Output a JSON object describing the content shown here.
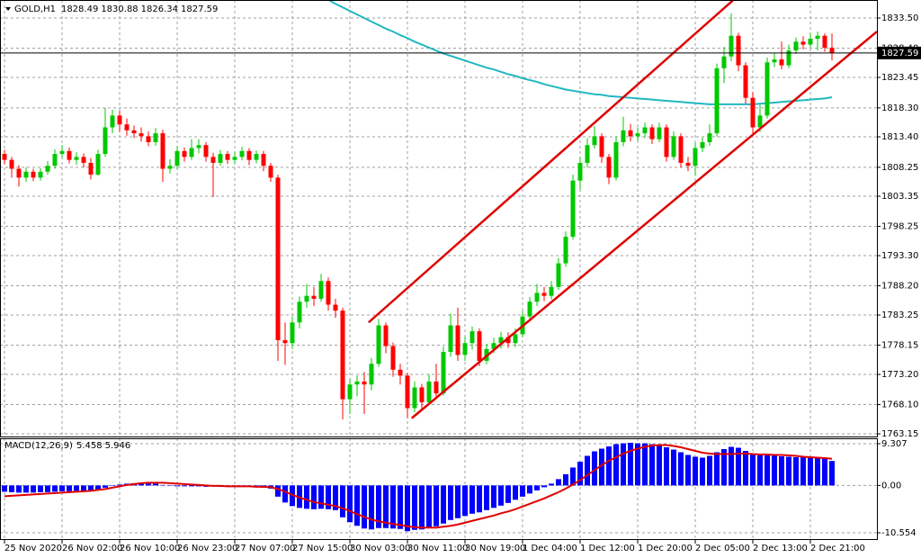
{
  "chart_data": [
    {
      "type": "candlestick",
      "title": "GOLD,H1",
      "categories": [
        "25 Nov 2020",
        null,
        null,
        null,
        null,
        null,
        null,
        null,
        "26 Nov 02:00",
        null,
        null,
        null,
        null,
        null,
        null,
        null,
        "26 Nov 10:00",
        null,
        null,
        null,
        null,
        null,
        null,
        null,
        "26 Nov 23:00",
        null,
        null,
        null,
        null,
        null,
        null,
        null,
        "27 Nov 07:00",
        null,
        null,
        null,
        null,
        null,
        null,
        null,
        "27 Nov 15:00",
        null,
        null,
        null,
        null,
        null,
        null,
        null,
        "30 Nov 03:00",
        null,
        null,
        null,
        null,
        null,
        null,
        null,
        "30 Nov 11:00",
        null,
        null,
        null,
        null,
        null,
        null,
        null,
        "30 Nov 19:00",
        null,
        null,
        null,
        null,
        null,
        null,
        null,
        "1 Dec 04:00",
        null,
        null,
        null,
        null,
        null,
        null,
        null,
        "1 Dec 12:00",
        null,
        null,
        null,
        null,
        null,
        null,
        null,
        "1 Dec 20:00",
        null,
        null,
        null,
        null,
        null,
        null,
        null,
        "2 Dec 05:00",
        null,
        null,
        null,
        null,
        null,
        null,
        null,
        "2 Dec 13:00",
        null,
        null,
        null,
        null,
        null,
        null,
        null,
        "2 Dec 21:00",
        null,
        null,
        null
      ],
      "open": [
        1810.5,
        1809.5,
        1808.0,
        1806.5,
        1807.5,
        1806.5,
        1807.5,
        1808.5,
        1810.5,
        1811.0,
        1809.5,
        1810.0,
        1809.0,
        1807.0,
        1810.5,
        1815.0,
        1817.0,
        1815.5,
        1814.5,
        1814.0,
        1813.5,
        1812.5,
        1814.0,
        1808.0,
        1808.5,
        1811.0,
        1810.0,
        1811.5,
        1812.0,
        1810.0,
        1809.0,
        1810.5,
        1809.5,
        1810.0,
        1811.0,
        1809.5,
        1810.5,
        1808.5,
        1806.5,
        1779.0,
        1778.5,
        1782.0,
        1785.5,
        1786.5,
        1786.0,
        1789.0,
        1785.0,
        1784.0,
        1769.0,
        1771.5,
        1772.0,
        1771.5,
        1775.0,
        1781.5,
        1778.0,
        1774.0,
        1773.0,
        1767.5,
        1771.0,
        1768.5,
        1772.0,
        1770.0,
        1777.0,
        1781.5,
        1776.5,
        1778.5,
        1780.5,
        1775.5,
        1777.5,
        1778.5,
        1779.5,
        1778.5,
        1780.0,
        1783.0,
        1785.5,
        1787.0,
        1786.5,
        1788.0,
        1792.0,
        1796.5,
        1806.0,
        1809.0,
        1812.0,
        1813.5,
        1810.0,
        1806.5,
        1812.5,
        1814.5,
        1813.5,
        1814.0,
        1815.0,
        1813.0,
        1815.0,
        1810.0,
        1813.5,
        1809.0,
        1808.5,
        1811.5,
        1812.5,
        1814.0,
        1825.0,
        1827.0,
        1830.5,
        1825.5,
        1820.0,
        1815.0,
        1817.0,
        1826.0,
        1826.5,
        1825.5,
        1828.0,
        1829.5,
        1829.0,
        1830.0,
        1830.5,
        1828.49
      ],
      "high": [
        1811.2,
        1810.0,
        1808.6,
        1808.2,
        1808.0,
        1808.1,
        1809.3,
        1811.3,
        1812.0,
        1811.6,
        1810.8,
        1810.6,
        1809.8,
        1811.2,
        1818.3,
        1818.0,
        1817.8,
        1816.5,
        1815.3,
        1815.0,
        1814.3,
        1814.9,
        1814.6,
        1809.6,
        1811.8,
        1811.6,
        1813.0,
        1813.0,
        1812.5,
        1810.7,
        1811.2,
        1811.0,
        1810.9,
        1811.7,
        1811.5,
        1811.1,
        1811.0,
        1809.0,
        1807.0,
        1782.0,
        1783.0,
        1786.4,
        1788.5,
        1788.0,
        1790.2,
        1789.6,
        1786.0,
        1784.5,
        1772.5,
        1773.0,
        1773.6,
        1776.0,
        1782.6,
        1782.0,
        1778.6,
        1775.0,
        1773.5,
        1772.0,
        1771.6,
        1773.2,
        1775.0,
        1777.9,
        1783.5,
        1784.5,
        1779.6,
        1781.3,
        1781.0,
        1778.4,
        1779.4,
        1780.4,
        1780.3,
        1781.0,
        1784.0,
        1786.3,
        1788.5,
        1788.0,
        1789.0,
        1792.9,
        1797.4,
        1807.0,
        1810.0,
        1813.2,
        1815.2,
        1814.0,
        1810.5,
        1813.5,
        1816.8,
        1815.6,
        1815.0,
        1815.8,
        1815.5,
        1815.8,
        1815.5,
        1814.3,
        1814.0,
        1810.0,
        1812.4,
        1813.3,
        1815.5,
        1825.8,
        1828.6,
        1834.3,
        1831.0,
        1826.0,
        1821.0,
        1818.8,
        1826.8,
        1827.5,
        1829.5,
        1829.0,
        1830.2,
        1830.4,
        1831.0,
        1831.2,
        1830.9,
        1830.88
      ],
      "low": [
        1808.8,
        1806.5,
        1805.0,
        1805.8,
        1805.9,
        1806.0,
        1807.0,
        1808.0,
        1809.8,
        1808.9,
        1808.7,
        1808.2,
        1806.2,
        1806.8,
        1810.0,
        1814.0,
        1814.2,
        1813.6,
        1813.2,
        1812.6,
        1811.8,
        1811.9,
        1805.8,
        1807.2,
        1807.9,
        1809.2,
        1809.5,
        1810.6,
        1809.2,
        1803.2,
        1808.5,
        1808.8,
        1808.9,
        1809.4,
        1808.6,
        1808.9,
        1807.6,
        1805.8,
        1775.5,
        1774.8,
        1777.5,
        1781.0,
        1784.5,
        1784.8,
        1785.5,
        1784.0,
        1782.8,
        1765.6,
        1766.5,
        1769.5,
        1766.5,
        1770.5,
        1774.5,
        1776.8,
        1772.8,
        1771.5,
        1765.8,
        1766.8,
        1767.3,
        1768.0,
        1769.0,
        1769.6,
        1776.2,
        1775.5,
        1775.5,
        1777.4,
        1774.6,
        1774.9,
        1776.8,
        1777.6,
        1777.7,
        1777.8,
        1779.5,
        1782.4,
        1784.8,
        1785.6,
        1785.9,
        1787.5,
        1791.4,
        1796.0,
        1804.5,
        1808.2,
        1811.4,
        1809.0,
        1805.4,
        1806.0,
        1811.8,
        1812.6,
        1812.8,
        1813.2,
        1812.2,
        1812.5,
        1809.2,
        1809.5,
        1808.2,
        1807.6,
        1806.8,
        1810.8,
        1811.9,
        1813.4,
        1822.5,
        1826.2,
        1824.5,
        1819.0,
        1814.0,
        1814.2,
        1816.5,
        1825.2,
        1824.8,
        1825.0,
        1827.4,
        1828.2,
        1828.5,
        1828.0,
        1827.8,
        1826.34
      ],
      "close": [
        1809.5,
        1808.0,
        1806.5,
        1807.5,
        1806.5,
        1807.5,
        1808.5,
        1810.5,
        1811.0,
        1809.5,
        1810.0,
        1809.0,
        1807.0,
        1810.5,
        1815.0,
        1817.0,
        1815.5,
        1814.5,
        1814.0,
        1813.5,
        1812.5,
        1814.0,
        1808.0,
        1808.5,
        1811.0,
        1810.0,
        1811.5,
        1812.0,
        1810.0,
        1809.0,
        1810.5,
        1809.5,
        1810.0,
        1811.0,
        1809.5,
        1810.5,
        1808.5,
        1806.5,
        1779.0,
        1778.5,
        1782.0,
        1785.5,
        1786.5,
        1786.0,
        1789.0,
        1785.0,
        1784.0,
        1769.0,
        1771.5,
        1772.0,
        1771.5,
        1775.0,
        1781.5,
        1778.0,
        1774.0,
        1773.0,
        1767.5,
        1771.0,
        1768.5,
        1772.0,
        1770.0,
        1777.0,
        1781.5,
        1776.5,
        1778.5,
        1780.5,
        1775.5,
        1777.5,
        1778.5,
        1779.5,
        1778.5,
        1780.0,
        1783.0,
        1785.5,
        1787.0,
        1786.5,
        1788.0,
        1792.0,
        1796.5,
        1806.0,
        1809.0,
        1812.0,
        1813.5,
        1810.0,
        1806.5,
        1812.5,
        1814.5,
        1813.5,
        1814.0,
        1815.0,
        1813.0,
        1815.0,
        1810.0,
        1813.5,
        1809.0,
        1808.5,
        1811.5,
        1812.5,
        1814.0,
        1825.0,
        1827.0,
        1830.5,
        1825.5,
        1820.0,
        1815.0,
        1817.0,
        1826.0,
        1826.5,
        1825.5,
        1828.0,
        1829.5,
        1829.0,
        1830.0,
        1830.5,
        1828.49,
        1827.59
      ],
      "up_color": "#00c800",
      "down_color": "#ff0000",
      "ylim": [
        1762.7,
        1836.55
      ],
      "yticks": [
        {
          "value": 1833.5,
          "label": "1833.50"
        },
        {
          "value": 1828.4,
          "label": "1828.40"
        },
        1823.45,
        {
          "value": 1818.3,
          "label": "1818.30"
        },
        {
          "value": 1813.4,
          "label": "1813.40"
        },
        1808.25,
        1803.35,
        1798.25,
        {
          "value": 1793.3,
          "label": "1793.30"
        },
        {
          "value": 1788.2,
          "label": "1788.20"
        },
        1783.25,
        1778.15,
        {
          "value": 1773.2,
          "label": "1773.20"
        },
        {
          "value": 1768.1,
          "label": "1768.10"
        },
        1763.15
      ],
      "grid": true,
      "ma": {
        "color": "#20b8c0",
        "values": [
          null,
          null,
          null,
          null,
          null,
          null,
          null,
          null,
          null,
          null,
          null,
          null,
          null,
          null,
          null,
          null,
          null,
          null,
          null,
          null,
          null,
          null,
          null,
          null,
          null,
          null,
          null,
          null,
          null,
          null,
          null,
          null,
          null,
          null,
          null,
          null,
          null,
          null,
          null,
          null,
          null,
          null,
          null,
          null,
          null,
          1836.6,
          1835.9,
          1835.3,
          1834.7,
          1834.1,
          1833.5,
          1832.9,
          1832.3,
          1831.7,
          1831.2,
          1830.6,
          1830.1,
          1829.5,
          1829.0,
          1828.5,
          1828.0,
          1827.5,
          1827.1,
          1826.7,
          1826.3,
          1825.9,
          1825.5,
          1825.1,
          1824.8,
          1824.4,
          1824.0,
          1823.7,
          1823.3,
          1823.0,
          1822.7,
          1822.3,
          1822.0,
          1821.7,
          1821.4,
          1821.2,
          1821.0,
          1820.8,
          1820.6,
          1820.5,
          1820.3,
          1820.2,
          1820.1,
          1820.0,
          1819.9,
          1819.8,
          1819.7,
          1819.6,
          1819.5,
          1819.4,
          1819.3,
          1819.2,
          1819.1,
          1819.0,
          1818.9,
          1818.9,
          1818.9,
          1818.9,
          1818.9,
          1818.9,
          1818.9,
          1819.0,
          1819.1,
          1819.2,
          1819.3,
          1819.4,
          1819.5,
          1819.6,
          1819.7,
          1819.8,
          1819.9,
          1820.1
        ]
      },
      "trendlines": [
        {
          "color": "#e00000",
          "x": [
            50.6,
            101.25
          ],
          "y": [
            1782.0,
            1836.5
          ]
        },
        {
          "color": "#e00000",
          "x": [
            56.6,
            121.25
          ],
          "y": [
            1765.8,
            1831.2
          ]
        }
      ]
    },
    {
      "type": "macd",
      "title": "MACD(12,26,9)",
      "histogram_color": "#0000ff",
      "signal_color": "#e00000",
      "histogram": [
        -1.4,
        -1.5,
        -1.6,
        -1.6,
        -1.6,
        -1.5,
        -1.5,
        -1.4,
        -1.3,
        -1.3,
        -1.2,
        -1.2,
        -1.1,
        -0.9,
        -0.5,
        -0.1,
        0.2,
        0.4,
        0.5,
        0.5,
        0.4,
        0.4,
        0.1,
        -0.1,
        -0.2,
        -0.2,
        -0.2,
        -0.2,
        -0.3,
        -0.2,
        -0.3,
        -0.3,
        -0.3,
        -0.3,
        -0.3,
        -0.4,
        -0.5,
        -0.7,
        -2.5,
        -3.8,
        -4.6,
        -5.0,
        -5.2,
        -5.3,
        -5.2,
        -5.3,
        -5.5,
        -7.1,
        -8.2,
        -9.0,
        -9.6,
        -9.8,
        -9.5,
        -9.5,
        -9.6,
        -9.7,
        -10.2,
        -9.9,
        -9.8,
        -9.4,
        -9.1,
        -8.5,
        -7.7,
        -7.3,
        -6.8,
        -6.3,
        -6.0,
        -5.5,
        -5.0,
        -4.5,
        -3.9,
        -3.2,
        -2.5,
        -1.8,
        -1.1,
        -0.4,
        0.4,
        1.4,
        2.5,
        4.0,
        5.3,
        6.6,
        7.6,
        8.2,
        8.7,
        9.2,
        9.4,
        9.5,
        9.4,
        9.4,
        9.2,
        9.1,
        8.5,
        8.0,
        7.4,
        6.8,
        6.4,
        6.2,
        6.6,
        7.4,
        8.1,
        8.6,
        8.4,
        7.7,
        6.9,
        6.7,
        6.7,
        6.6,
        6.5,
        6.4,
        6.3,
        6.3,
        6.3,
        6.3,
        6.2,
        5.458
      ],
      "signal": [
        -2.4,
        -2.3,
        -2.2,
        -2.1,
        -2.0,
        -1.9,
        -1.8,
        -1.7,
        -1.6,
        -1.5,
        -1.4,
        -1.3,
        -1.2,
        -1.0,
        -0.8,
        -0.5,
        -0.2,
        0.1,
        0.3,
        0.5,
        0.6,
        0.6,
        0.6,
        0.5,
        0.4,
        0.3,
        0.2,
        0.1,
        0.0,
        -0.1,
        -0.1,
        -0.2,
        -0.2,
        -0.2,
        -0.2,
        -0.3,
        -0.3,
        -0.4,
        -0.8,
        -1.4,
        -2.1,
        -2.7,
        -3.2,
        -3.7,
        -4.0,
        -4.3,
        -4.6,
        -5.1,
        -5.7,
        -6.4,
        -7.0,
        -7.6,
        -8.0,
        -8.3,
        -8.6,
        -8.8,
        -9.1,
        -9.3,
        -9.4,
        -9.4,
        -9.4,
        -9.2,
        -9.0,
        -8.7,
        -8.3,
        -7.9,
        -7.5,
        -7.1,
        -6.7,
        -6.2,
        -5.8,
        -5.3,
        -4.7,
        -4.1,
        -3.5,
        -2.9,
        -2.2,
        -1.5,
        -0.7,
        0.2,
        1.2,
        2.3,
        3.4,
        4.5,
        5.5,
        6.3,
        7.1,
        7.7,
        8.2,
        8.6,
        8.9,
        9.0,
        9.0,
        8.8,
        8.5,
        8.1,
        7.7,
        7.3,
        7.1,
        7.0,
        7.0,
        7.0,
        7.1,
        7.1,
        7.0,
        6.9,
        6.9,
        6.8,
        6.8,
        6.7,
        6.6,
        6.4,
        6.3,
        6.2,
        6.1,
        5.946
      ],
      "ylim": [
        -12.16,
        10.51
      ],
      "yticks": [
        9.307,
        {
          "value": 0,
          "label": "0.00"
        },
        -10.554
      ],
      "grid": true
    }
  ]
}
